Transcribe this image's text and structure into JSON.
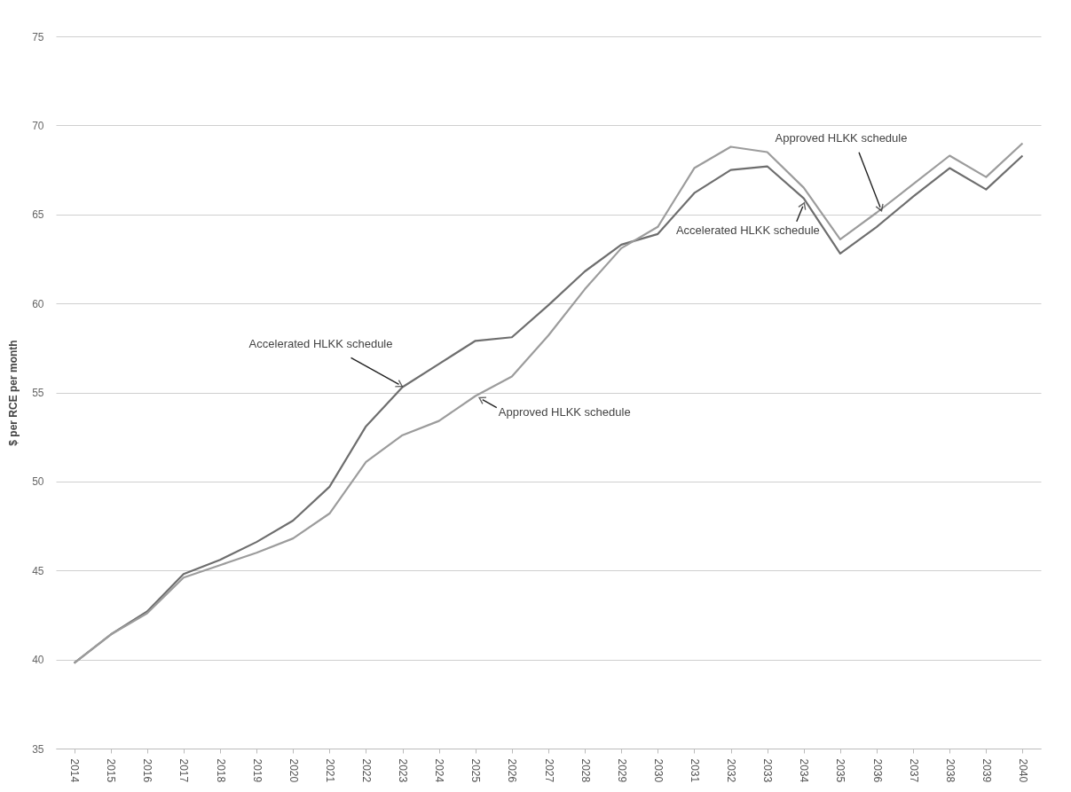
{
  "chart_data": {
    "type": "line",
    "ylabel": "$ per RCE per month",
    "categories": [
      "2014",
      "2015",
      "2016",
      "2017",
      "2018",
      "2019",
      "2020",
      "2021",
      "2022",
      "2023",
      "2024",
      "2025",
      "2026",
      "2027",
      "2028",
      "2029",
      "2030",
      "2031",
      "2032",
      "2033",
      "2034",
      "2035",
      "2036",
      "2037",
      "2038",
      "2039",
      "2040"
    ],
    "series": [
      {
        "color": "#6e6e6e",
        "values": [
          39.8,
          41.4,
          42.7,
          44.8,
          45.6,
          46.6,
          47.8,
          49.7,
          53.1,
          55.3,
          56.6,
          57.9,
          58.1,
          59.9,
          61.8,
          63.3,
          63.9,
          66.2,
          67.5,
          67.7,
          65.9,
          62.8,
          64.3,
          66.0,
          67.6,
          66.4,
          68.3
        ]
      },
      {
        "color": "#9c9c9c",
        "values": [
          39.8,
          41.4,
          42.6,
          44.6,
          45.3,
          46.0,
          46.8,
          48.2,
          51.1,
          52.6,
          53.4,
          54.8,
          55.9,
          58.2,
          60.8,
          63.1,
          64.3,
          67.6,
          68.8,
          68.5,
          66.5,
          63.6,
          65.1,
          66.7,
          68.3,
          67.1,
          69.0
        ]
      }
    ],
    "ylim": [
      35,
      75
    ],
    "yticks": [
      35,
      40,
      45,
      50,
      55,
      60,
      65,
      70,
      75
    ],
    "grid": "y",
    "marker": "none",
    "line_style": "solid",
    "legend": false,
    "annotations": [
      {
        "text": "Accelerated HLKK schedule",
        "x": "2023",
        "y": 55.3
      },
      {
        "text": "Approved HLKK schedule",
        "x": "2025",
        "y": 54.8
      },
      {
        "text": "Approved HLKK schedule",
        "x": "2036",
        "y": 65.1
      },
      {
        "text": "Accelerated HLKK schedule",
        "x": "2034",
        "y": 65.9
      }
    ]
  }
}
